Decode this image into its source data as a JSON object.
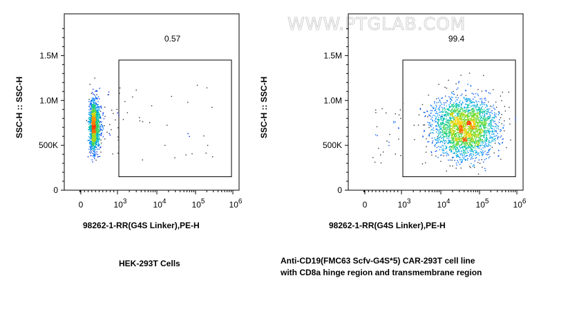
{
  "watermark": "WWW.PTGLAB.COM",
  "chart_data": [
    {
      "type": "scatter",
      "xlabel": "98262-1-RR(G4S Linker),PE-H",
      "ylabel": "SSC-H :: SSC-H",
      "caption": [
        "HEK-293T Cells"
      ],
      "gate_value": "0.57",
      "x_scale": "biexponential",
      "x_ticks": [
        "0",
        "10^3",
        "10^4",
        "10^5",
        "10^6"
      ],
      "y_ticks": [
        "0",
        "500K",
        "1.0M",
        "1.5M"
      ],
      "ylim": [
        0,
        1950000
      ],
      "gate": {
        "x": [
          1000,
          1000000
        ],
        "y": [
          150000,
          1450000
        ]
      },
      "density_plot": "pseudocolor",
      "population": {
        "median_x": 350,
        "median_y": 720000,
        "percent_in_gate": 0.57
      }
    },
    {
      "type": "scatter",
      "xlabel": "98262-1-RR(G4S Linker),PE-H",
      "ylabel": "SSC-H :: SSC-H",
      "caption": [
        "Anti-CD19(FMC63 Scfv-G4S*5) CAR-293T cell line",
        "with CD8a hinge region and transmembrane region"
      ],
      "gate_value": "99.4",
      "x_scale": "biexponential",
      "x_ticks": [
        "0",
        "10^3",
        "10^4",
        "10^5",
        "10^6"
      ],
      "y_ticks": [
        "0",
        "500K",
        "1.0M",
        "1.5M"
      ],
      "ylim": [
        0,
        1950000
      ],
      "gate": {
        "x": [
          1000,
          1000000
        ],
        "y": [
          150000,
          1450000
        ]
      },
      "density_plot": "pseudocolor",
      "population": {
        "median_x": 40000,
        "median_y": 700000,
        "percent_in_gate": 99.4
      }
    }
  ]
}
